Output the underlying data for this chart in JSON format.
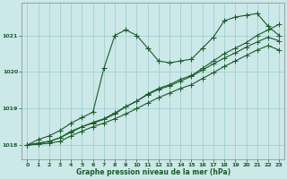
{
  "xlabel": "Graphe pression niveau de la mer (hPa)",
  "bg_color": "#cce8e8",
  "grid_color": "#99cccc",
  "line_color": "#1a5c2a",
  "xlim": [
    -0.5,
    23.5
  ],
  "ylim": [
    1017.6,
    1021.9
  ],
  "yticks": [
    1018,
    1019,
    1020,
    1021
  ],
  "xticks": [
    0,
    1,
    2,
    3,
    4,
    5,
    6,
    7,
    8,
    9,
    10,
    11,
    12,
    13,
    14,
    15,
    16,
    17,
    18,
    19,
    20,
    21,
    22,
    23
  ],
  "line1_x": [
    0,
    1,
    2,
    3,
    4,
    5,
    6,
    7,
    8,
    9,
    10,
    11,
    12,
    13,
    14,
    15,
    16,
    17,
    18,
    19,
    20,
    21,
    22,
    23
  ],
  "line1_y": [
    1018.0,
    1018.15,
    1018.25,
    1018.4,
    1018.6,
    1018.75,
    1018.9,
    1020.1,
    1021.0,
    1021.15,
    1021.0,
    1020.65,
    1020.3,
    1020.25,
    1020.3,
    1020.35,
    1020.65,
    1020.95,
    1021.4,
    1021.5,
    1021.55,
    1021.6,
    1021.25,
    1021.0
  ],
  "line2_x": [
    0,
    1,
    2,
    3,
    4,
    5,
    6,
    7,
    8,
    9,
    10,
    11,
    12,
    13,
    14,
    15,
    16,
    17,
    18,
    19,
    20,
    21,
    22,
    23
  ],
  "line2_y": [
    1018.0,
    1018.05,
    1018.1,
    1018.2,
    1018.35,
    1018.5,
    1018.6,
    1018.7,
    1018.85,
    1019.05,
    1019.2,
    1019.4,
    1019.55,
    1019.65,
    1019.8,
    1019.9,
    1020.1,
    1020.3,
    1020.5,
    1020.65,
    1020.8,
    1021.0,
    1021.15,
    1021.3
  ],
  "line3_x": [
    0,
    1,
    2,
    3,
    4,
    5,
    6,
    7,
    8,
    9,
    10,
    11,
    12,
    13,
    14,
    15,
    16,
    17,
    18,
    19,
    20,
    21,
    22,
    23
  ],
  "line3_y": [
    1018.0,
    1018.02,
    1018.05,
    1018.1,
    1018.25,
    1018.38,
    1018.5,
    1018.6,
    1018.72,
    1018.85,
    1019.0,
    1019.15,
    1019.3,
    1019.42,
    1019.55,
    1019.65,
    1019.82,
    1019.98,
    1020.15,
    1020.3,
    1020.45,
    1020.6,
    1020.72,
    1020.6
  ],
  "line4_x": [
    0,
    1,
    2,
    3,
    4,
    5,
    6,
    7,
    8,
    9,
    10,
    11,
    12,
    13,
    14,
    15,
    16,
    17,
    18,
    19,
    20,
    21,
    22,
    23
  ],
  "line4_y": [
    1018.0,
    1018.05,
    1018.1,
    1018.2,
    1018.38,
    1018.5,
    1018.62,
    1018.72,
    1018.88,
    1019.05,
    1019.2,
    1019.38,
    1019.52,
    1019.62,
    1019.75,
    1019.88,
    1020.05,
    1020.22,
    1020.38,
    1020.52,
    1020.68,
    1020.82,
    1020.95,
    1020.85
  ]
}
